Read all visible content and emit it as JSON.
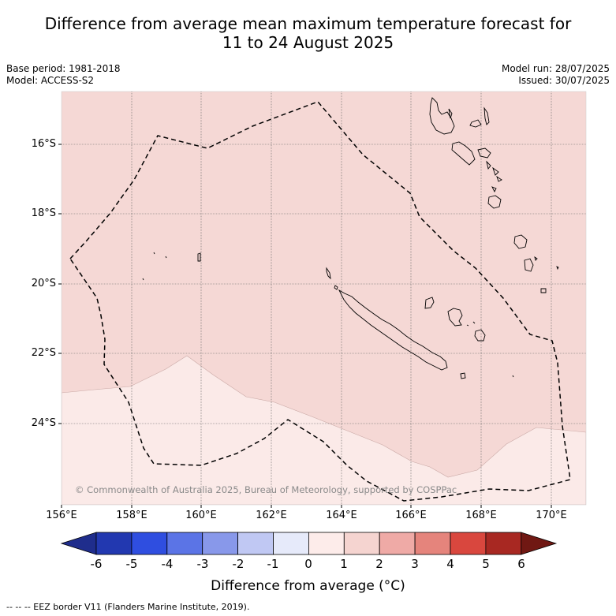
{
  "header": {
    "title_line1": "Difference from average mean maximum temperature forecast for",
    "title_line2": "11 to 24 August 2025",
    "base_period": "Base period: 1981-2018",
    "model": "Model: ACCESS-S2",
    "model_run": "Model run: 28/07/2025",
    "issued": "Issued: 30/07/2025"
  },
  "map": {
    "lat_labels": [
      "16°S",
      "18°S",
      "20°S",
      "22°S",
      "24°S"
    ],
    "lon_labels": [
      "156°E",
      "158°E",
      "160°E",
      "162°E",
      "164°E",
      "166°E",
      "168°E",
      "170°E"
    ],
    "anomaly_regions": [
      {
        "range": "1 to 2",
        "color": "#f5d8d5",
        "area": "north"
      },
      {
        "range": "0 to 1",
        "color": "#fbeae8",
        "area": "south"
      }
    ],
    "eez_style": "dashed",
    "copyright": "© Commonwealth of Australia 2025, Bureau of Meteorology, supported by COSPPac"
  },
  "colorbar": {
    "ticks": [
      "-6",
      "-5",
      "-4",
      "-3",
      "-2",
      "-1",
      "0",
      "1",
      "2",
      "3",
      "4",
      "5",
      "6"
    ],
    "colors": [
      "#1f2d8c",
      "#2238b0",
      "#2f4ee0",
      "#5b74e6",
      "#8898ea",
      "#c0c8f3",
      "#e6eafa",
      "#fdecea",
      "#f5d4d0",
      "#efaaa6",
      "#e5847c",
      "#d9473e",
      "#a82822",
      "#701813"
    ],
    "label": "Difference from average (°C)"
  },
  "footnote": "--  --  -- EEZ border V11 (Flanders Marine Institute, 2019)."
}
